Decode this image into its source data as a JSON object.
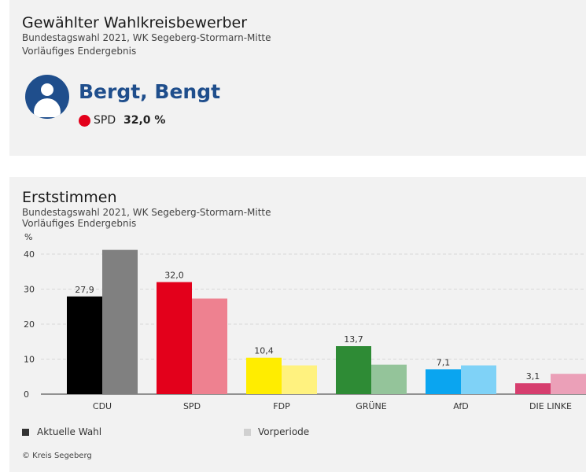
{
  "winner_card": {
    "title": "Gewählter Wahlkreisbewerber",
    "subtitle1": "Bundestagswahl 2021, WK Segeberg-Stormarn-Mitte",
    "subtitle2": "Vorläufiges Endergebnis",
    "candidate_name": "Bergt, Bengt",
    "party": "SPD",
    "party_color": "#e3001b",
    "percent": "32,0 %",
    "avatar_icon": "person-icon"
  },
  "chart_card": {
    "title": "Erststimmen",
    "subtitle1": "Bundestagswahl 2021, WK Segeberg-Stormarn-Mitte",
    "subtitle2": "Vorläufiges Endergebnis",
    "legend": {
      "current": "Aktuelle Wahl",
      "previous": "Vorperiode"
    },
    "copyright": "© Kreis Segeberg"
  },
  "chart_data": {
    "type": "bar",
    "ylabel": "%",
    "ylim": [
      0,
      40
    ],
    "yticks": [
      0,
      10,
      20,
      30,
      40
    ],
    "grid": true,
    "categories": [
      "CDU",
      "SPD",
      "FDP",
      "GRÜNE",
      "AfD",
      "DIE LINKE"
    ],
    "series": [
      {
        "name": "Aktuelle Wahl",
        "values": [
          27.9,
          32.0,
          10.4,
          13.7,
          7.1,
          3.1
        ],
        "labels": [
          "27,9",
          "32,0",
          "10,4",
          "13,7",
          "7,1",
          "3,1"
        ],
        "colors": [
          "#000000",
          "#e3001b",
          "#ffed00",
          "#2e8b35",
          "#0aa5f0",
          "#d63e6e"
        ]
      },
      {
        "name": "Vorperiode",
        "values": [
          41.2,
          27.3,
          8.2,
          8.4,
          8.2,
          5.8
        ],
        "colors": [
          "#808080",
          "#ee8190",
          "#fff27f",
          "#94c49a",
          "#7fd2f7",
          "#eba0b8"
        ]
      }
    ],
    "legend_position": "bottom"
  }
}
